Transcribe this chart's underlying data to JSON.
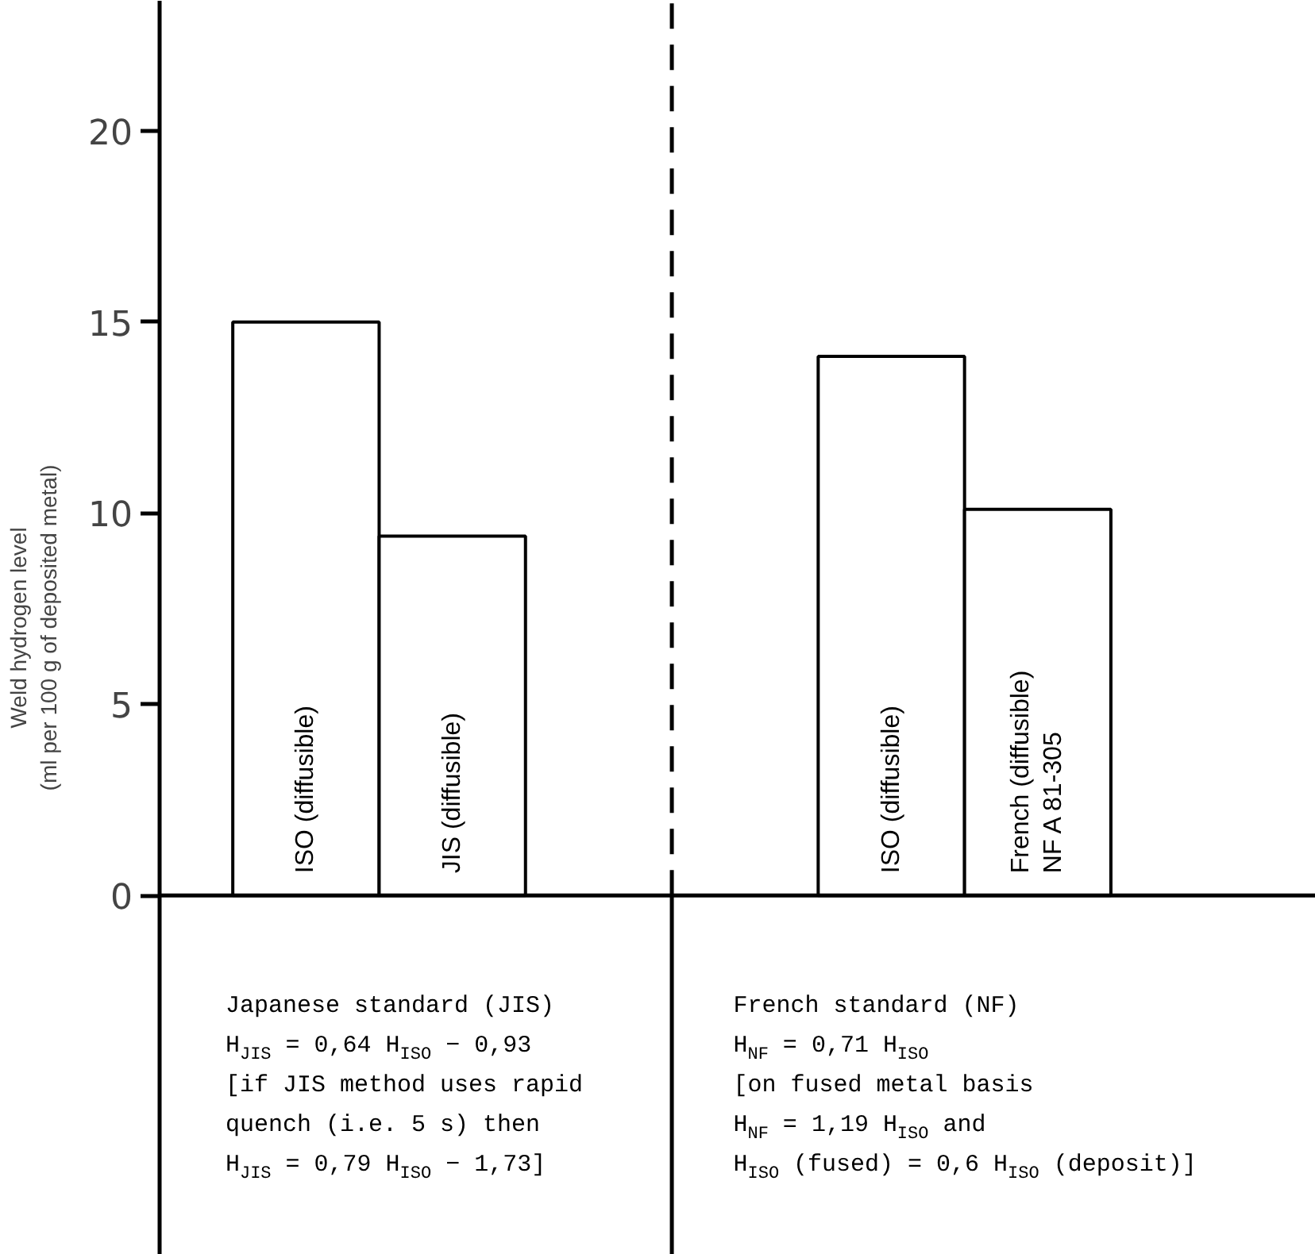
{
  "chart_data": {
    "type": "bar",
    "categories": [
      "ISO (diffusible)",
      "JIS (diffusible)",
      null,
      null,
      "ISO (diffusible)",
      "French (diffusible)\nNF A 81-305"
    ],
    "values": [
      15,
      9.4,
      null,
      null,
      14.1,
      10.1
    ],
    "color": "#ffffff",
    "ylabel": "Weld hydrogen level\n(ml per 100 g of deposited metal)",
    "ylim": [
      -9.4,
      23.4
    ],
    "yticks": [
      0,
      5,
      10,
      15,
      20
    ],
    "grid": false,
    "annotations": [
      "Japanese standard (JIS)\nH$_{JIS}$ = 0,64 H$_{ISO}$ − 0,93\n[if JIS method uses rapid\nquench (i.e. 5 s) then\nH$_{JIS}$ = 0,79 H$_{ISO}$ − 1,73]",
      "French standard (NF)\nH$_{NF}$ = 0,71 H$_{ISO}$\n[on fused metal basis\nH$_{NF}$ = 1,19 H$_{ISO}$ and\nH$_{ISO}$ (fused) = 0,6 H$_{ISO}$ (deposit)]"
    ]
  }
}
